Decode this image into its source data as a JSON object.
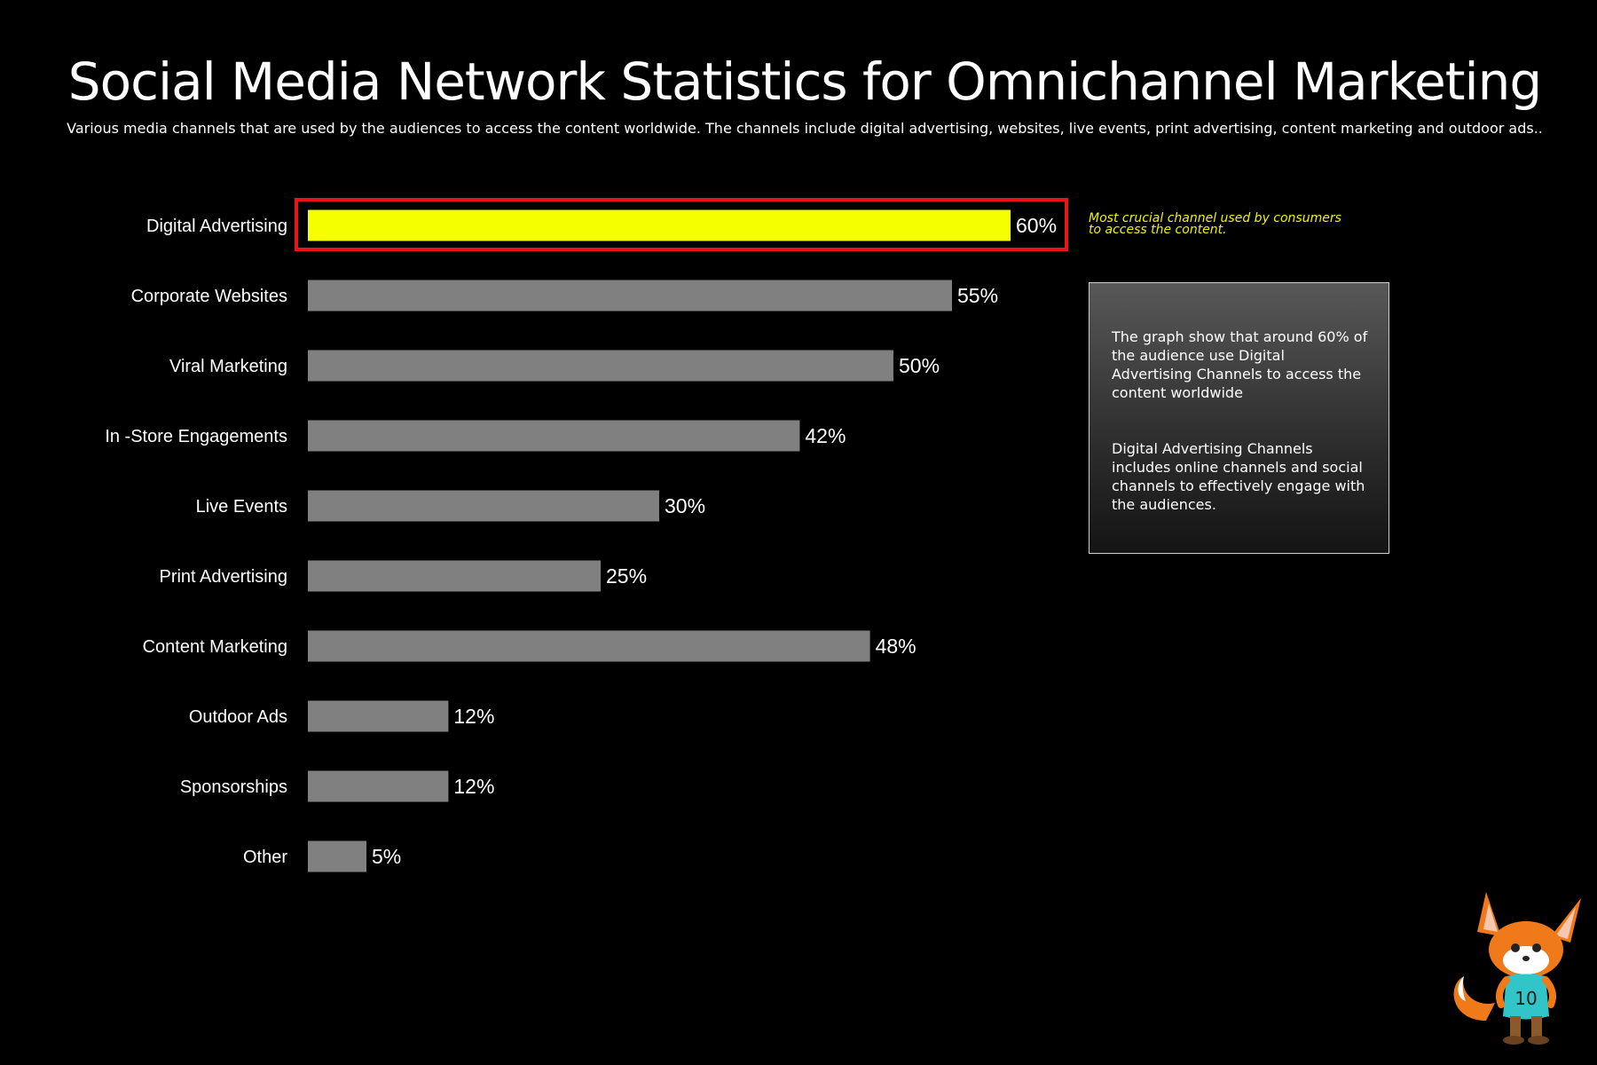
{
  "header": {
    "title": "Social Media Network Statistics for Omnichannel Marketing",
    "subtitle": "Various media channels that are used by the audiences to access the content worldwide. The channels include digital advertising, websites, live events, print advertising, content marketing and outdoor ads.."
  },
  "chart_data": {
    "type": "bar",
    "orientation": "horizontal",
    "categories": [
      "Digital Advertising",
      "Corporate Websites",
      "Viral Marketing",
      "In -Store Engagements",
      "Live Events",
      "Print Advertising",
      "Content Marketing",
      "Outdoor Ads",
      "Sponsorships",
      "Other"
    ],
    "values": [
      60,
      55,
      50,
      42,
      30,
      25,
      48,
      12,
      12,
      5
    ],
    "value_labels": [
      "60%",
      "55%",
      "50%",
      "42%",
      "30%",
      "25%",
      "48%",
      "12%",
      "12%",
      "5%"
    ],
    "unit": "%",
    "highlight_index": 0,
    "colors": {
      "highlight": "#f5ff00",
      "bar": "#808080",
      "highlight_border": "#e8141c",
      "background": "#000000",
      "callout_text": "#f2f200"
    },
    "grid": false,
    "legend": "none"
  },
  "callout": {
    "text": "Most crucial channel used by consumers to access the content."
  },
  "note": {
    "paragraph_1": "The graph show that around 60% of the audience use Digital Advertising Channels to access the content worldwide",
    "paragraph_2": "Digital Advertising Channels includes online channels and social channels to effectively engage with the audiences."
  },
  "mascot": {
    "icon": "fox-mascot-icon",
    "badge_text": "10"
  }
}
